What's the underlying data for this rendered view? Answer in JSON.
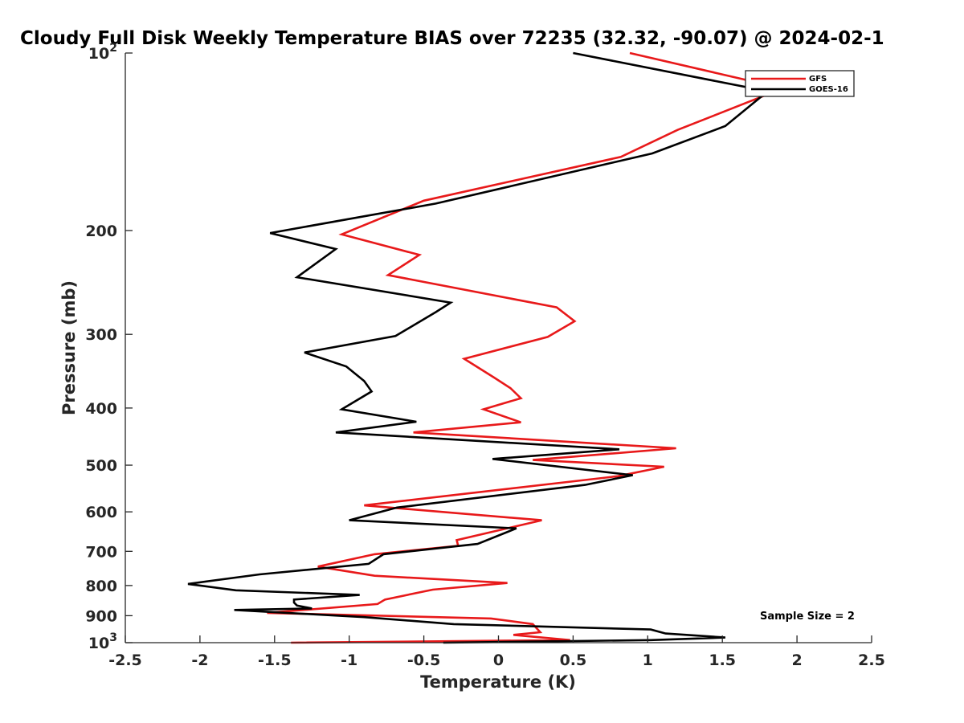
{
  "chart_data": {
    "type": "line",
    "title": "Cloudy Full Disk Weekly Temperature BIAS over 72235 (32.32, -90.07) @ 2024-02-1",
    "xlabel": "Temperature (K)",
    "ylabel": "Pressure (mb)",
    "xlim": [
      -2.5,
      2.5
    ],
    "ylim": [
      1000,
      100
    ],
    "yscale": "log",
    "x_ticks": [
      {
        "value": -2.5,
        "label": "-2.5"
      },
      {
        "value": -2,
        "label": "-2"
      },
      {
        "value": -1.5,
        "label": "-1.5"
      },
      {
        "value": -1,
        "label": "-1"
      },
      {
        "value": -0.5,
        "label": "-0.5"
      },
      {
        "value": 0,
        "label": "0"
      },
      {
        "value": 0.5,
        "label": "0.5"
      },
      {
        "value": 1,
        "label": "1"
      },
      {
        "value": 1.5,
        "label": "1.5"
      },
      {
        "value": 2,
        "label": "2"
      },
      {
        "value": 2.5,
        "label": "2.5"
      }
    ],
    "y_ticks": [
      {
        "value": 200,
        "label": "200"
      },
      {
        "value": 300,
        "label": "300"
      },
      {
        "value": 400,
        "label": "400"
      },
      {
        "value": 500,
        "label": "500"
      },
      {
        "value": 600,
        "label": "600"
      },
      {
        "value": 700,
        "label": "700"
      },
      {
        "value": 800,
        "label": "800"
      },
      {
        "value": 900,
        "label": "900"
      }
    ],
    "y_power_ticks": [
      {
        "value": 100,
        "base": "10",
        "exp": "2"
      },
      {
        "value": 1000,
        "base": "10",
        "exp": "3"
      }
    ],
    "grid": false,
    "legend_position": "top-right",
    "annotation": "Sample Size = 2",
    "series": [
      {
        "name": "GFS",
        "color": "#e8191a",
        "points": [
          [
            0.88,
            100
          ],
          [
            1.72,
            112
          ],
          [
            1.86,
            116
          ],
          [
            1.2,
            135
          ],
          [
            0.82,
            150
          ],
          [
            -0.5,
            178
          ],
          [
            -1.05,
            203
          ],
          [
            -0.53,
            220
          ],
          [
            -0.74,
            238
          ],
          [
            0.39,
            270
          ],
          [
            0.51,
            285
          ],
          [
            0.33,
            303
          ],
          [
            -0.23,
            330
          ],
          [
            -0.03,
            355
          ],
          [
            0.08,
            370
          ],
          [
            0.15,
            385
          ],
          [
            -0.1,
            402
          ],
          [
            0.15,
            423
          ],
          [
            -0.57,
            440
          ],
          [
            1.19,
            468
          ],
          [
            0.23,
            490
          ],
          [
            1.11,
            503
          ],
          [
            0.8,
            522
          ],
          [
            -0.9,
            585
          ],
          [
            0.29,
            620
          ],
          [
            -0.28,
            670
          ],
          [
            -0.27,
            685
          ],
          [
            -0.83,
            708
          ],
          [
            -1.21,
            743
          ],
          [
            -0.83,
            770
          ],
          [
            0.06,
            792
          ],
          [
            -0.44,
            813
          ],
          [
            -0.76,
            845
          ],
          [
            -0.81,
            860
          ],
          [
            -1.55,
            890
          ],
          [
            -0.05,
            910
          ],
          [
            0.23,
            930
          ],
          [
            0.28,
            960
          ],
          [
            0.1,
            970
          ],
          [
            0.48,
            990
          ],
          [
            -1.39,
            1000
          ]
        ]
      },
      {
        "name": "GOES-16",
        "color": "#000000",
        "points": [
          [
            0.5,
            100
          ],
          [
            1.72,
            115
          ],
          [
            1.77,
            118
          ],
          [
            1.52,
            133
          ],
          [
            1.03,
            148
          ],
          [
            -0.42,
            180
          ],
          [
            -1.53,
            202
          ],
          [
            -1.09,
            215
          ],
          [
            -1.35,
            240
          ],
          [
            -0.32,
            265
          ],
          [
            -0.42,
            275
          ],
          [
            -0.69,
            302
          ],
          [
            -1.3,
            322
          ],
          [
            -1.02,
            340
          ],
          [
            -0.9,
            360
          ],
          [
            -0.85,
            375
          ],
          [
            -1.05,
            402
          ],
          [
            -0.55,
            422
          ],
          [
            -1.09,
            440
          ],
          [
            0.81,
            470
          ],
          [
            -0.04,
            488
          ],
          [
            0.9,
            520
          ],
          [
            0.58,
            540
          ],
          [
            -0.68,
            590
          ],
          [
            -1.0,
            620
          ],
          [
            0.12,
            640
          ],
          [
            -0.14,
            680
          ],
          [
            -0.77,
            708
          ],
          [
            -0.87,
            735
          ],
          [
            -1.6,
            766
          ],
          [
            -2.08,
            795
          ],
          [
            -1.76,
            815
          ],
          [
            -0.93,
            830
          ],
          [
            -1.37,
            845
          ],
          [
            -1.37,
            855
          ],
          [
            -1.35,
            865
          ],
          [
            -1.25,
            875
          ],
          [
            -1.77,
            880
          ],
          [
            -0.9,
            905
          ],
          [
            -0.3,
            930
          ],
          [
            1.02,
            950
          ],
          [
            1.12,
            965
          ],
          [
            1.52,
            980
          ],
          [
            1.02,
            990
          ],
          [
            -0.37,
            1000
          ]
        ]
      }
    ]
  }
}
